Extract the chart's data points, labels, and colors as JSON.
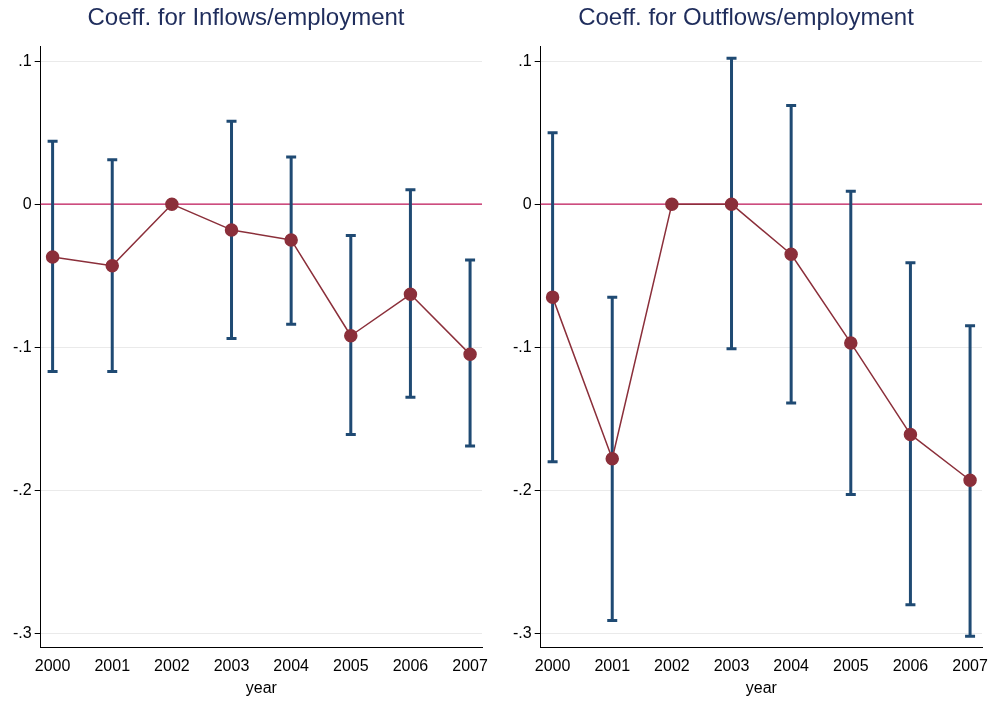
{
  "chart_data": [
    {
      "type": "line",
      "title": "Coeff. for Inflows/employment",
      "xlabel": "year",
      "x": [
        2000,
        2001,
        2002,
        2003,
        2004,
        2005,
        2006,
        2007
      ],
      "series": [
        {
          "color": "#8b2f3a",
          "values": [
            -0.037,
            -0.043,
            0,
            -0.018,
            -0.025,
            -0.092,
            -0.063,
            -0.105
          ],
          "errors": [
            [
              -0.117,
              0.044
            ],
            [
              -0.117,
              0.031
            ],
            null,
            [
              -0.094,
              0.058
            ],
            [
              -0.084,
              0.033
            ],
            [
              -0.161,
              -0.022
            ],
            [
              -0.135,
              0.01
            ],
            [
              -0.169,
              -0.039
            ]
          ]
        }
      ],
      "xlim": [
        1999.8,
        2007.2
      ],
      "xticks": [
        2000,
        2001,
        2002,
        2003,
        2004,
        2005,
        2006,
        2007
      ],
      "ylim": [
        -0.31,
        0.11
      ],
      "yticks": [
        {
          "value": -0.3,
          "label": "-.3"
        },
        {
          "value": -0.2,
          "label": "-.2"
        },
        {
          "value": -0.1,
          "label": "-.1"
        },
        {
          "value": 0,
          "label": "0"
        },
        {
          "value": 0.1,
          "label": ".1"
        }
      ],
      "ref_lines": [
        {
          "axis": "y",
          "value": 0,
          "color": "#c2185b"
        }
      ],
      "grid": "y",
      "legend": false,
      "marker": "circle",
      "line_style": "solid"
    },
    {
      "type": "line",
      "title": "Coeff. for Outflows/employment",
      "xlabel": "year",
      "x": [
        2000,
        2001,
        2002,
        2003,
        2004,
        2005,
        2006,
        2007
      ],
      "series": [
        {
          "color": "#8b2f3a",
          "values": [
            -0.065,
            -0.178,
            0,
            0,
            -0.035,
            -0.097,
            -0.161,
            -0.193
          ],
          "errors": [
            [
              -0.18,
              0.05
            ],
            [
              -0.291,
              -0.065
            ],
            null,
            [
              -0.101,
              0.102
            ],
            [
              -0.139,
              0.069
            ],
            [
              -0.203,
              0.009
            ],
            [
              -0.28,
              -0.041
            ],
            [
              -0.302,
              -0.085
            ]
          ]
        }
      ],
      "xlim": [
        1999.8,
        2007.2
      ],
      "xticks": [
        2000,
        2001,
        2002,
        2003,
        2004,
        2005,
        2006,
        2007
      ],
      "ylim": [
        -0.31,
        0.11
      ],
      "yticks": [
        {
          "value": -0.3,
          "label": "-.3"
        },
        {
          "value": -0.2,
          "label": "-.2"
        },
        {
          "value": -0.1,
          "label": "-.1"
        },
        {
          "value": 0,
          "label": "0"
        },
        {
          "value": 0.1,
          "label": ".1"
        }
      ],
      "ref_lines": [
        {
          "axis": "y",
          "value": 0,
          "color": "#c2185b"
        }
      ],
      "grid": "y",
      "legend": false,
      "marker": "circle",
      "line_style": "solid"
    }
  ]
}
